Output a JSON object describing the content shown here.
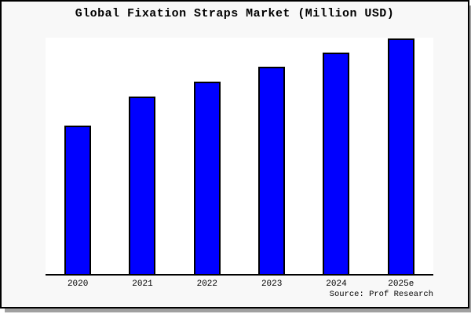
{
  "title": "Global Fixation Straps Market (Million USD)",
  "source_note": "Source: Prof Research",
  "colors": {
    "bar_fill": "#0000ff",
    "bar_edge": "#000000",
    "card_background": "#f8f8f8",
    "plot_background": "#ffffff",
    "axis": "#000000",
    "frame_border": "#000000",
    "shadow": "#a0a0a0",
    "text": "#000000"
  },
  "chart_data": {
    "type": "bar",
    "title": "Global Fixation Straps Market (Million USD)",
    "categories": [
      "2020",
      "2021",
      "2022",
      "2023",
      "2024",
      "2025e"
    ],
    "values": [
      63,
      75.3,
      81.7,
      88,
      94,
      100
    ],
    "value_unit": "relative height, % of tallest bar (2025e = 100); y-axis has no tick labels so absolute Million-USD values are not shown",
    "xlabel": "",
    "ylabel": "",
    "y_axis_visible": false,
    "y_tick_labels": [],
    "gridlines": false,
    "legend": false,
    "bar_color": "#0000ff",
    "bar_edge_color": "#000000",
    "annotations": [
      "Source: Prof Research"
    ]
  }
}
